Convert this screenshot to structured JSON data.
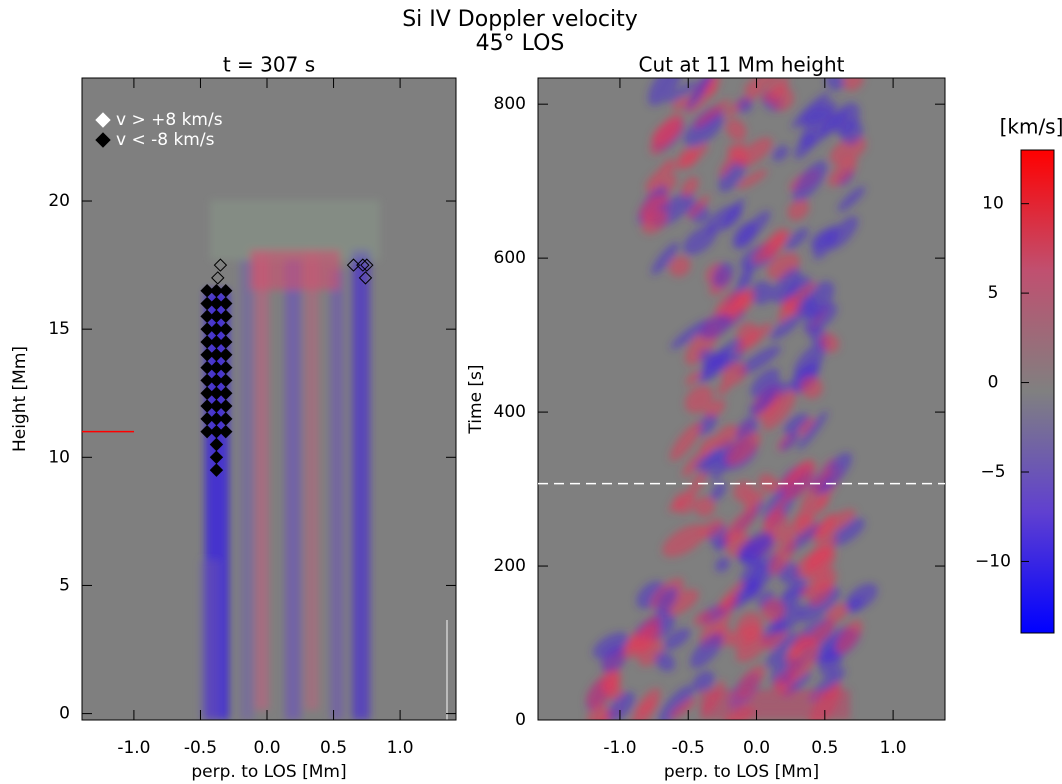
{
  "title": "Si IV Doppler velocity",
  "subtitle": "45° LOS",
  "chart_data": [
    {
      "type": "scatter",
      "title": "t =  307 s",
      "x_label": "perp. to LOS [Mm]",
      "y_label": "Height [Mm]",
      "xlim": [
        -1.39,
        1.42
      ],
      "ylim": [
        -0.25,
        24.8
      ],
      "xticks": [
        {
          "value": -1.0,
          "label": "-1.0"
        },
        -0.5,
        {
          "value": 0.0,
          "label": "0.0"
        },
        0.5,
        {
          "value": 1.0,
          "label": "1.0"
        }
      ],
      "yticks": [
        0,
        5,
        10,
        15,
        20
      ],
      "marker_height": 11,
      "marker_color": "#ff0000",
      "series": [
        {
          "name": "v > +8 km/s",
          "color": "#ffffff",
          "x": [
            0.65,
            0.72,
            0.75,
            0.74,
            -0.35,
            -0.37
          ],
          "y": [
            17.5,
            17.5,
            17.5,
            17,
            17.5,
            17
          ]
        },
        {
          "name": "v < -8 km/s",
          "color": "#000000",
          "x": [
            -0.38,
            -0.38,
            -0.38,
            -0.38,
            -0.38,
            -0.38,
            -0.38,
            -0.38,
            -0.38,
            -0.38,
            -0.38,
            -0.38,
            -0.38,
            -0.38,
            -0.38,
            -0.45,
            -0.45,
            -0.45,
            -0.45,
            -0.45,
            -0.45,
            -0.45,
            -0.45,
            -0.45,
            -0.45,
            -0.45,
            -0.45,
            -0.31,
            -0.31,
            -0.31,
            -0.31,
            -0.31,
            -0.31,
            -0.31,
            -0.31,
            -0.31,
            -0.31,
            -0.31,
            -0.31
          ],
          "y": [
            9.5,
            10,
            10.5,
            11,
            11.5,
            12,
            12.5,
            13,
            13.5,
            14,
            14.5,
            15,
            15.5,
            16,
            16.5,
            11,
            11.5,
            12,
            12.5,
            13,
            13.5,
            14,
            14.5,
            15,
            15.5,
            16,
            16.5,
            11,
            11.5,
            12,
            12.5,
            13,
            13.5,
            14,
            14.5,
            15,
            15.5,
            16,
            16.5
          ]
        }
      ]
    },
    {
      "type": "image",
      "title": "Cut at 11 Mm height",
      "x_label": "perp. to LOS [Mm]",
      "y_label": "Time [s]",
      "xlim": [
        -1.6,
        1.38
      ],
      "ylim": [
        0,
        834
      ],
      "xticks": [
        {
          "value": -1.0,
          "label": "-1.0"
        },
        -0.5,
        {
          "value": 0.0,
          "label": "0.0"
        },
        0.5,
        {
          "value": 1.0,
          "label": "1.0"
        }
      ],
      "yticks": [
        0,
        200,
        400,
        600,
        800
      ],
      "hline": 307
    },
    {
      "type": "colorbar",
      "label": "[km/s]",
      "ylim": [
        -14,
        13
      ],
      "yticks": [
        10,
        5,
        0,
        {
          "value": -5,
          "label": "−5"
        },
        {
          "value": -10,
          "label": "−10"
        }
      ],
      "colors": [
        "#0000ff",
        "#6040d0",
        "#808080",
        "#c05070",
        "#ff0000"
      ]
    }
  ]
}
